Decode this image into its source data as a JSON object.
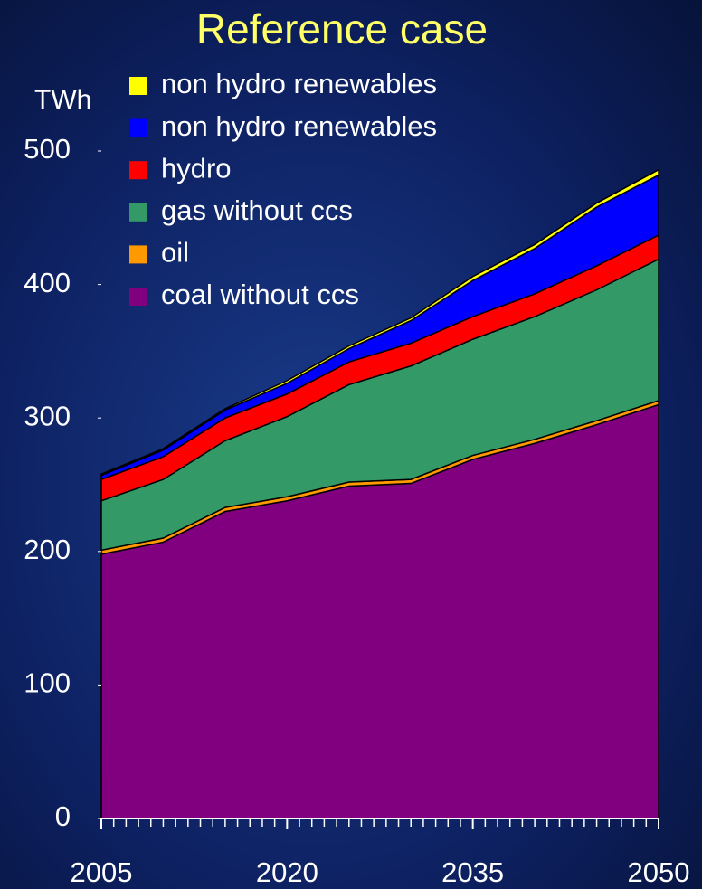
{
  "chart_data": {
    "type": "stacked_area",
    "title": "Reference case",
    "y_axis_label": "TWh",
    "x": [
      2005,
      2010,
      2015,
      2020,
      2025,
      2030,
      2035,
      2040,
      2045,
      2050
    ],
    "xlim": [
      2005,
      2050
    ],
    "xticks": [
      2005,
      2020,
      2035,
      2050
    ],
    "ylim": [
      0,
      500
    ],
    "yticks": [
      0,
      100,
      200,
      300,
      400,
      500
    ],
    "series": [
      {
        "name": "coal without ccs",
        "color": "#800080",
        "values": [
          198,
          207,
          230,
          238,
          249,
          251,
          269,
          281,
          295,
          310
        ]
      },
      {
        "name": "oil",
        "color": "#ff9900",
        "values": [
          3,
          3,
          3,
          3,
          3,
          3,
          3,
          3,
          3,
          3
        ]
      },
      {
        "name": "gas without ccs",
        "color": "#339966",
        "values": [
          37,
          44,
          50,
          60,
          73,
          85,
          87,
          92,
          98,
          106
        ]
      },
      {
        "name": "hydro",
        "color": "#ff0000",
        "values": [
          16,
          17,
          17,
          17,
          17,
          17,
          17,
          17,
          18,
          18
        ]
      },
      {
        "name": "non hydro renewables",
        "color": "#0000ff",
        "values": [
          3,
          5,
          6,
          8,
          10,
          17,
          27,
          34,
          44,
          45
        ]
      },
      {
        "name": "non hydro renewables",
        "color": "#ffff00",
        "values": [
          1,
          1,
          1,
          2,
          2,
          2,
          3,
          3,
          3,
          4
        ]
      }
    ]
  }
}
